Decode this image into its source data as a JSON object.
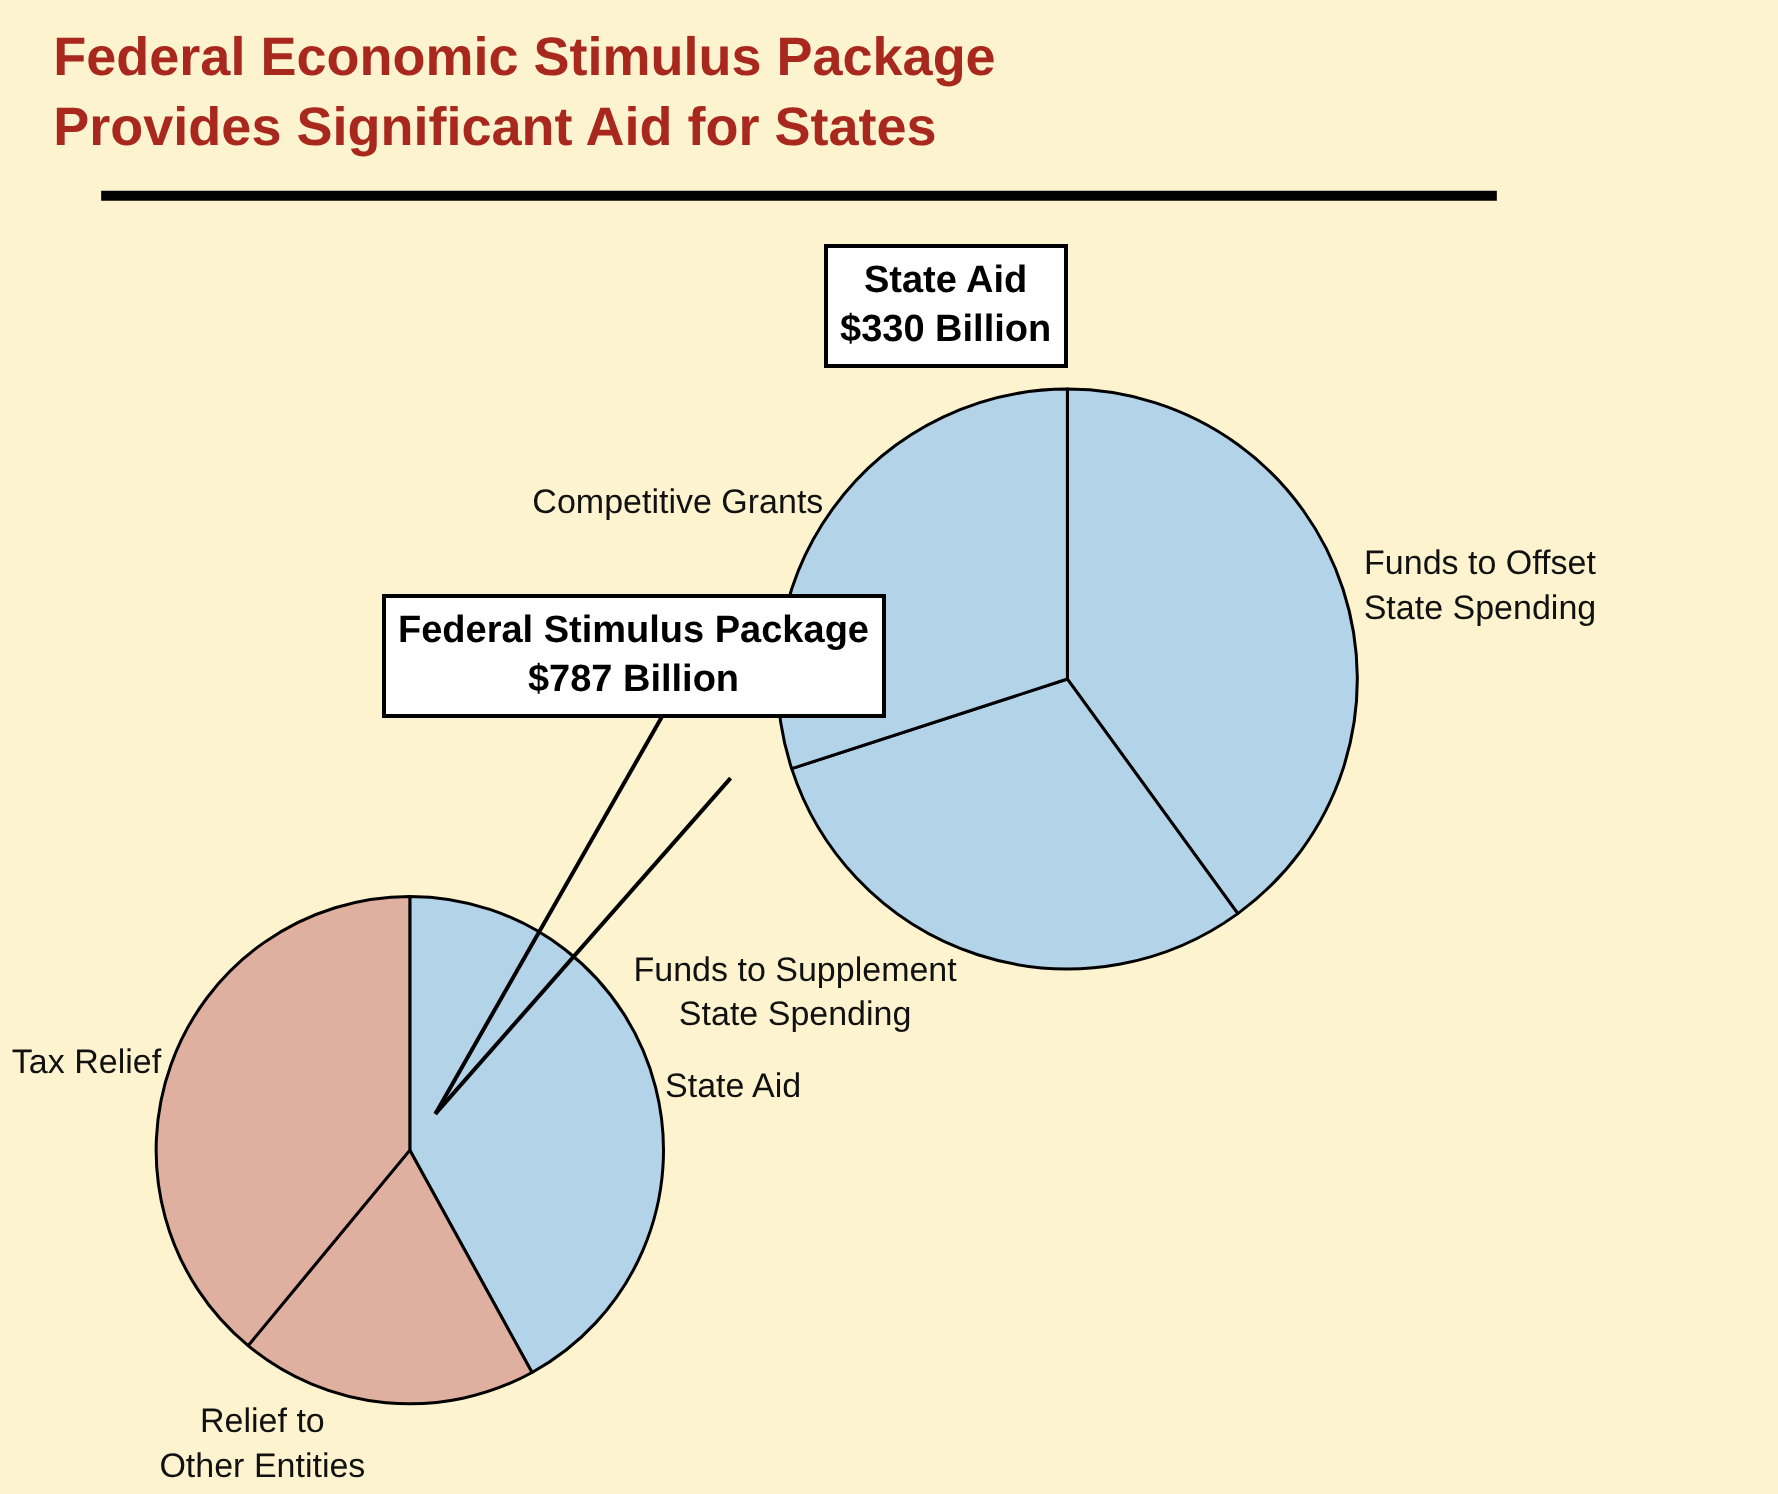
{
  "chart_data": [
    {
      "type": "pie",
      "title": "Federal Economic Stimulus Package\nProvides Significant Aid for States",
      "subtitle": "Federal Stimulus Package\n$787 Billion",
      "categories": [
        "State Aid",
        "Relief to\nOther Entities",
        "Tax Relief"
      ],
      "values": [
        42,
        19,
        39
      ],
      "colors": [
        "#b3d3e8",
        "#dfb0a0",
        "#dfb0a0"
      ]
    },
    {
      "type": "pie",
      "subtitle": "State Aid\n$330 Billion",
      "categories": [
        "Funds to Offset\nState Spending",
        "Funds to Supplement\nState Spending",
        "Competitive Grants"
      ],
      "values": [
        40,
        30,
        30
      ],
      "colors": [
        "#b3d3e8",
        "#b3d3e8",
        "#b3d3e8"
      ]
    }
  ]
}
